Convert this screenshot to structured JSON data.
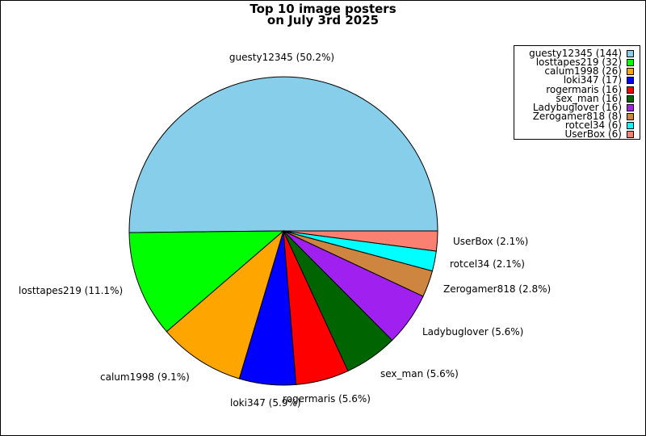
{
  "chart_data": {
    "type": "pie",
    "title_lines": [
      "Top 10 image posters",
      "on July 3rd 2025"
    ],
    "slices": [
      {
        "label": "guesty12345",
        "value": 144,
        "percent_label": "guesty12345 (50.2%)",
        "legend_label": "guesty12345 (144)",
        "color": "#87CEEB"
      },
      {
        "label": "losttapes219",
        "value": 32,
        "percent_label": "losttapes219 (11.1%)",
        "legend_label": "losttapes219 (32)",
        "color": "#00FF00"
      },
      {
        "label": "calum1998",
        "value": 26,
        "percent_label": "calum1998 (9.1%)",
        "legend_label": "calum1998 (26)",
        "color": "#FFA500"
      },
      {
        "label": "loki347",
        "value": 17,
        "percent_label": "loki347 (5.9%)",
        "legend_label": "loki347 (17)",
        "color": "#0000FF"
      },
      {
        "label": "rogermaris",
        "value": 16,
        "percent_label": "rogermaris (5.6%)",
        "legend_label": "rogermaris (16)",
        "color": "#FF0000"
      },
      {
        "label": "sex_man",
        "value": 16,
        "percent_label": "sex_man (5.6%)",
        "legend_label": "sex_man (16)",
        "color": "#006400"
      },
      {
        "label": "Ladybuglover",
        "value": 16,
        "percent_label": "Ladybuglover (5.6%)",
        "legend_label": "Ladybuglover (16)",
        "color": "#A020F0"
      },
      {
        "label": "Zerogamer818",
        "value": 8,
        "percent_label": "Zerogamer818 (2.8%)",
        "legend_label": "Zerogamer818 (8)",
        "color": "#CD853F"
      },
      {
        "label": "rotcel34",
        "value": 6,
        "percent_label": "rotcel34 (2.1%)",
        "legend_label": "rotcel34 (6)",
        "color": "#00FFFF"
      },
      {
        "label": "UserBox",
        "value": 6,
        "percent_label": "UserBox (2.1%)",
        "legend_label": "UserBox (6)",
        "color": "#FA8072"
      }
    ],
    "start_angle_deg": 0,
    "direction": "counterclockwise",
    "legend_position": "top-right"
  }
}
